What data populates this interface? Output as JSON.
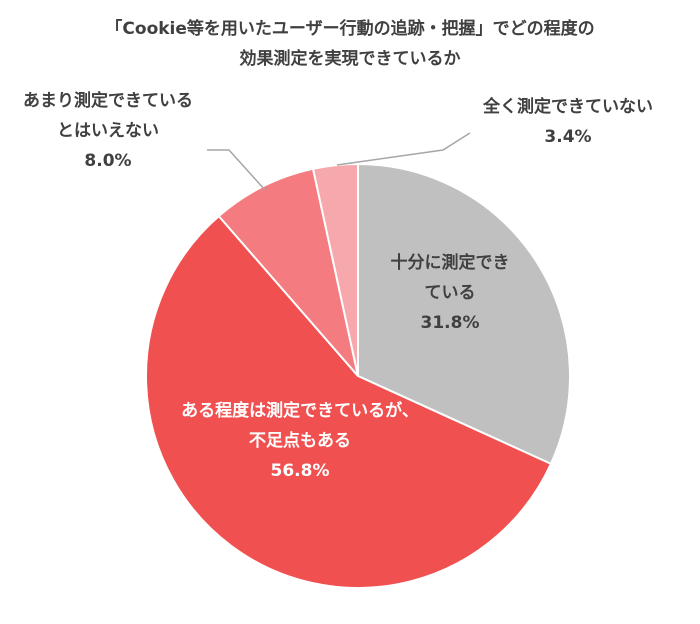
{
  "chart_data": {
    "type": "pie",
    "title_lines": [
      "「Cookie等を用いたユーザー行動の追跡・把握」でどの程度の",
      "効果測定を実現できているか"
    ],
    "slices": [
      {
        "label_lines": [
          "十分に測定でき",
          "ている"
        ],
        "value": 31.8,
        "value_text": "31.8%",
        "color": "#c0c0c0",
        "text_color": "#404040"
      },
      {
        "label_lines": [
          "ある程度は測定できているが、",
          "不足点もある"
        ],
        "value": 56.8,
        "value_text": "56.8%",
        "color": "#f05050",
        "text_color": "#ffffff"
      },
      {
        "label_lines": [
          "あまり測定できている",
          "とはいえない"
        ],
        "value": 8.0,
        "value_text": "8.0%",
        "color": "#f47b80",
        "text_color": "#404040"
      },
      {
        "label_lines": [
          "全く測定できていない"
        ],
        "value": 3.4,
        "value_text": "3.4%",
        "color": "#f7a8ad",
        "text_color": "#404040"
      }
    ],
    "start_angle_deg": 0,
    "direction": "clockwise",
    "legend": "none"
  }
}
